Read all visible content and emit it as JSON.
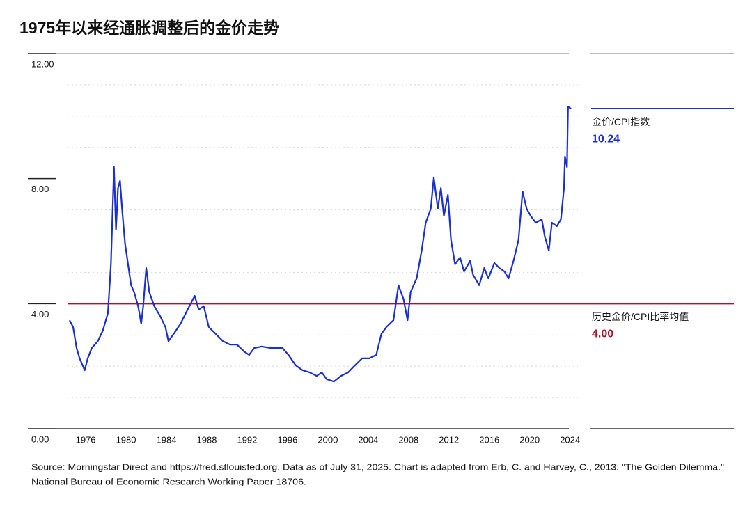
{
  "chart_data": {
    "type": "line",
    "title": "1975年以来经通胀调整后的金价走势",
    "source": [
      "Source: Morningstar Direct and https://fred.stlouisfed.org. Data as of July 31, 2025. Chart is adapted from Erb, C. and Harvey, C., 2013. \"The Golden Dilemma.\"",
      "National Bureau of Economic Research Working Paper 18706."
    ],
    "xlim": [
      1974.2,
      2024.3
    ],
    "xticks": [
      1976,
      1980,
      1984,
      1988,
      1992,
      1996,
      2000,
      2004,
      2008,
      2012,
      2016,
      2020,
      2024
    ],
    "ylim": [
      0,
      12
    ],
    "yticks": [
      {
        "value": 0,
        "label": "0.00"
      },
      {
        "value": 4,
        "label": "4.00"
      },
      {
        "value": 8,
        "label": "8.00"
      },
      {
        "value": 12,
        "label": "12.00"
      }
    ],
    "minor_yticks": [
      1,
      2,
      3,
      5,
      6,
      7,
      9,
      10,
      11
    ],
    "grid": true,
    "series": [
      {
        "color": "#1a2fd0",
        "x": [
          1974.4,
          1974.75,
          1975.1,
          1975.4,
          1975.9,
          1976.2,
          1976.6,
          1977.2,
          1977.7,
          1978.2,
          1978.5,
          1978.8,
          1979.0,
          1979.2,
          1979.4,
          1979.6,
          1979.9,
          1980.2,
          1980.5,
          1980.8,
          1981.2,
          1981.5,
          1981.7,
          1982.0,
          1982.3,
          1982.8,
          1983.4,
          1983.9,
          1984.2,
          1984.8,
          1985.4,
          1986.1,
          1986.8,
          1987.2,
          1987.7,
          1988.2,
          1988.9,
          1989.6,
          1990.3,
          1991.0,
          1991.7,
          1992.2,
          1992.7,
          1993.4,
          1994.4,
          1995.5,
          1996.1,
          1996.8,
          1997.5,
          1998.2,
          1998.9,
          1999.4,
          1999.9,
          2000.6,
          2001.3,
          2002.0,
          2002.7,
          2003.4,
          2004.1,
          2004.8,
          2005.3,
          2005.8,
          2006.5,
          2007.0,
          2007.5,
          2007.9,
          2008.2,
          2008.8,
          2009.3,
          2009.7,
          2010.2,
          2010.5,
          2010.9,
          2011.2,
          2011.5,
          2011.9,
          2012.2,
          2012.6,
          2013.1,
          2013.5,
          2014.1,
          2014.4,
          2015.0,
          2015.5,
          2015.9,
          2016.5,
          2017.0,
          2017.5,
          2017.9,
          2018.4,
          2018.9,
          2019.3,
          2019.7,
          2020.1,
          2020.6,
          2021.2,
          2021.5,
          2021.9,
          2022.2,
          2022.7,
          2023.1,
          2023.4,
          2023.5,
          2023.7,
          2023.8,
          2024.1
        ],
        "values": [
          3.47,
          3.25,
          2.58,
          2.25,
          1.87,
          2.25,
          2.58,
          2.8,
          3.14,
          3.7,
          5.26,
          8.37,
          6.37,
          7.7,
          7.93,
          7.04,
          5.92,
          5.26,
          4.59,
          4.37,
          3.92,
          3.36,
          3.92,
          5.14,
          4.37,
          3.92,
          3.59,
          3.25,
          2.8,
          3.07,
          3.36,
          3.81,
          4.25,
          3.81,
          3.92,
          3.25,
          3.03,
          2.8,
          2.69,
          2.69,
          2.47,
          2.36,
          2.58,
          2.63,
          2.58,
          2.58,
          2.36,
          2.03,
          1.87,
          1.8,
          1.69,
          1.8,
          1.58,
          1.51,
          1.69,
          1.8,
          2.03,
          2.25,
          2.25,
          2.36,
          3.03,
          3.25,
          3.47,
          4.59,
          4.14,
          3.47,
          4.37,
          4.81,
          5.7,
          6.59,
          7.04,
          8.04,
          7.04,
          7.7,
          6.81,
          7.48,
          6.04,
          5.26,
          5.48,
          5.03,
          5.37,
          4.92,
          4.59,
          5.14,
          4.81,
          5.3,
          5.14,
          5.03,
          4.81,
          5.37,
          6.04,
          7.59,
          7.04,
          6.81,
          6.59,
          6.7,
          6.15,
          5.7,
          6.59,
          6.48,
          6.7,
          7.7,
          8.71,
          8.37,
          10.3,
          10.24
        ]
      }
    ],
    "reference_lines": [
      {
        "name": "金价/CPI指数",
        "value": 10.24,
        "label": "10.24",
        "color": "#1a2fd0"
      },
      {
        "name": "历史金价/CPI比率均值",
        "value": 4,
        "label": "4.00",
        "color": "#b01028"
      }
    ]
  }
}
